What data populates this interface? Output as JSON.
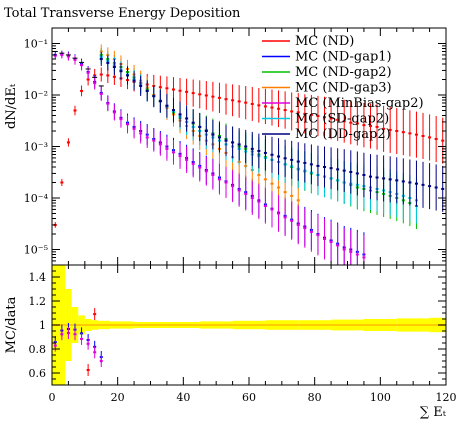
{
  "chart_data": [
    {
      "type": "scatter",
      "title": "Total Transverse Energy Deposition",
      "ylabel": "dN/dE_T",
      "xlabel": "",
      "xlim": [
        0,
        120
      ],
      "ylim": [
        5e-06,
        0.2
      ],
      "yscale": "log",
      "legend_position": "top-right",
      "y_ticks": [
        {
          "v": 0.1,
          "label": "10⁻¹"
        },
        {
          "v": 0.01,
          "label": "10⁻²"
        },
        {
          "v": 0.001,
          "label": "10⁻³"
        },
        {
          "v": 0.0001,
          "label": "10⁻⁴"
        },
        {
          "v": 1e-05,
          "label": "10⁻⁵"
        }
      ],
      "data_points": {
        "x": [
          1,
          3,
          5,
          7,
          9,
          11,
          13,
          15
        ],
        "y": [
          0.07,
          0.065,
          0.06,
          0.052,
          0.043,
          0.032,
          0.022,
          0.015
        ]
      },
      "series": [
        {
          "name": "MC (ND)",
          "color": "#ff0000",
          "x": [
            1,
            3,
            5,
            7,
            9,
            11,
            13,
            15,
            17,
            19,
            21,
            23,
            25,
            27,
            29,
            31,
            33,
            35,
            37,
            39,
            41,
            43,
            45,
            47,
            49,
            51,
            53,
            55,
            57,
            59,
            61,
            63,
            65,
            67,
            69,
            71,
            73,
            75,
            77,
            79,
            81,
            83,
            85,
            87,
            89,
            91,
            93,
            95,
            97,
            99,
            101,
            103,
            105,
            107,
            109,
            111,
            113,
            115,
            117,
            119
          ],
          "y": [
            3e-05,
            0.0002,
            0.0012,
            0.005,
            0.012,
            0.02,
            0.024,
            0.025,
            0.024,
            0.0225,
            0.021,
            0.0195,
            0.018,
            0.017,
            0.016,
            0.015,
            0.0142,
            0.0135,
            0.0128,
            0.0121,
            0.0115,
            0.0109,
            0.0103,
            0.0098,
            0.0093,
            0.0088,
            0.0083,
            0.0079,
            0.0075,
            0.0071,
            0.0067,
            0.0063,
            0.006,
            0.0057,
            0.0054,
            0.0051,
            0.0048,
            0.0046,
            0.0043,
            0.0041,
            0.0039,
            0.0037,
            0.0035,
            0.0033,
            0.0031,
            0.0029,
            0.0028,
            0.0026,
            0.0025,
            0.0024,
            0.0022,
            0.0021,
            0.002,
            0.0019,
            0.0018,
            0.0017,
            0.0016,
            0.0015,
            0.0014,
            0.0013
          ]
        },
        {
          "name": "MC (ND-gap1)",
          "color": "#0000ff",
          "x": [
            1,
            3,
            5,
            7,
            9,
            11,
            13,
            15,
            17,
            19,
            21,
            23,
            25,
            27,
            29,
            31,
            33,
            35,
            37,
            39,
            41,
            43,
            45,
            47,
            49,
            51,
            53,
            55,
            57,
            59,
            61,
            63,
            65,
            67,
            69,
            71,
            73,
            75,
            77,
            79,
            81,
            83,
            85,
            87,
            89,
            91,
            93,
            95
          ],
          "y": [
            0.06,
            0.062,
            0.058,
            0.05,
            0.04,
            0.028,
            0.018,
            0.011,
            0.007,
            0.0048,
            0.0036,
            0.0029,
            0.0024,
            0.002,
            0.0017,
            0.0014,
            0.0012,
            0.001,
            0.00085,
            0.00072,
            0.0006,
            0.0005,
            0.00042,
            0.00035,
            0.0003,
            0.00025,
            0.00021,
            0.00018,
            0.00015,
            0.00013,
            0.00011,
            9e-05,
            7.5e-05,
            6.2e-05,
            5.2e-05,
            4.5e-05,
            3.8e-05,
            3.2e-05,
            2.8e-05,
            2.4e-05,
            2e-05,
            1.7e-05,
            1.5e-05,
            1.3e-05,
            1.1e-05,
            1e-05,
            9e-06,
            8e-06
          ]
        },
        {
          "name": "MC (ND-gap2)",
          "color": "#00c000",
          "x": [
            15,
            17,
            19,
            21,
            23,
            25,
            27,
            29,
            31,
            33,
            35,
            37,
            39,
            41,
            43,
            45,
            47,
            49,
            51,
            53,
            55,
            57,
            59,
            61,
            63,
            65,
            67,
            69,
            71,
            73,
            75,
            77,
            79,
            81,
            83,
            85,
            87,
            89,
            91,
            93,
            95,
            97,
            99,
            101,
            103,
            105,
            107,
            109,
            111
          ],
          "y": [
            0.06,
            0.05,
            0.042,
            0.035,
            0.028,
            0.022,
            0.017,
            0.013,
            0.01,
            0.0078,
            0.006,
            0.0046,
            0.0036,
            0.003,
            0.0028,
            0.0024,
            0.0021,
            0.0018,
            0.0016,
            0.0014,
            0.0012,
            0.001,
            0.0009,
            0.0008,
            0.0007,
            0.00062,
            0.00055,
            0.0005,
            0.00045,
            0.0004,
            0.00036,
            0.00033,
            0.0003,
            0.00028,
            0.00026,
            0.00024,
            0.00022,
            0.0002,
            0.00018,
            0.00016,
            0.00015,
            0.00014,
            0.00013,
            0.00012,
            0.00011,
            0.0001,
            9e-05,
            8e-05,
            7e-05
          ]
        },
        {
          "name": "MC (ND-gap3)",
          "color": "#ff8000",
          "x": [
            15,
            17,
            19,
            21,
            23,
            25,
            27,
            29,
            31,
            33,
            35,
            37,
            39,
            41,
            43,
            45,
            47,
            49,
            51,
            53,
            55,
            57,
            59,
            61,
            63,
            65,
            67,
            69,
            71,
            73,
            75
          ],
          "y": [
            0.07,
            0.06,
            0.05,
            0.04,
            0.032,
            0.025,
            0.019,
            0.014,
            0.01,
            0.0075,
            0.0056,
            0.0042,
            0.0032,
            0.0025,
            0.002,
            0.0016,
            0.0013,
            0.0011,
            0.0009,
            0.00075,
            0.00062,
            0.0005,
            0.00042,
            0.00035,
            0.00028,
            0.00023,
            0.00019,
            0.00016,
            0.00013,
            0.00011,
            9e-05
          ]
        },
        {
          "name": "MC (MinBias-gap2)",
          "color": "#e000e0",
          "x": [
            1,
            3,
            5,
            7,
            9,
            11,
            13,
            15,
            17,
            19,
            21,
            23,
            25,
            27,
            29,
            31,
            33,
            35,
            37,
            39,
            41,
            43,
            45,
            47,
            49,
            51,
            53,
            55,
            57,
            59,
            61,
            63,
            65,
            67,
            69,
            71,
            73,
            75,
            77,
            79,
            81,
            83,
            85,
            87,
            89,
            91,
            93,
            95
          ],
          "y": [
            0.058,
            0.06,
            0.056,
            0.048,
            0.038,
            0.027,
            0.017,
            0.0105,
            0.0068,
            0.0046,
            0.0034,
            0.0027,
            0.0022,
            0.0018,
            0.0015,
            0.0013,
            0.0011,
            0.0009,
            0.00077,
            0.00065,
            0.00055,
            0.00046,
            0.00039,
            0.00033,
            0.00028,
            0.00023,
            0.0002,
            0.00017,
            0.00014,
            0.00012,
            0.0001,
            8.5e-05,
            7e-05,
            6e-05,
            5e-05,
            4.2e-05,
            3.6e-05,
            3e-05,
            2.6e-05,
            2.2e-05,
            1.9e-05,
            1.6e-05,
            1.4e-05,
            1.2e-05,
            1e-05,
            9e-06,
            8e-06,
            7e-06
          ]
        },
        {
          "name": "MC (SD-gap2)",
          "color": "#00c8e0",
          "x": [
            15,
            17,
            19,
            21,
            23,
            25,
            27,
            29,
            31,
            33,
            35,
            37,
            39,
            41,
            43,
            45,
            47,
            49,
            51,
            53,
            55,
            57,
            59,
            61,
            63,
            65,
            67,
            69,
            71,
            73,
            75,
            77,
            79,
            81,
            83,
            85,
            87,
            89,
            91,
            93,
            95,
            97,
            99,
            101,
            103,
            105,
            107,
            109,
            111
          ],
          "y": [
            0.055,
            0.046,
            0.038,
            0.031,
            0.025,
            0.02,
            0.016,
            0.012,
            0.0095,
            0.0075,
            0.006,
            0.0048,
            0.0038,
            0.003,
            0.0024,
            0.002,
            0.0017,
            0.0015,
            0.0013,
            0.0011,
            0.001,
            0.0009,
            0.0008,
            0.0007,
            0.00065,
            0.0006,
            0.00055,
            0.0005,
            0.00045,
            0.00041,
            0.00037,
            0.00034,
            0.00031,
            0.00028,
            0.00026,
            0.00024,
            0.00022,
            0.0002,
            0.00019,
            0.00018,
            0.00017,
            0.00016,
            0.00015,
            0.00014,
            0.00013,
            0.00012,
            0.00011,
            0.0001,
            9e-05
          ]
        },
        {
          "name": "MC (DD-gap2)",
          "color": "#000080",
          "x": [
            15,
            17,
            19,
            21,
            23,
            25,
            27,
            29,
            31,
            33,
            35,
            37,
            39,
            41,
            43,
            45,
            47,
            49,
            51,
            53,
            55,
            57,
            59,
            61,
            63,
            65,
            67,
            69,
            71,
            73,
            75,
            77,
            79,
            81,
            83,
            85,
            87,
            89,
            91,
            93,
            95,
            97,
            99,
            101,
            103,
            105,
            107,
            109,
            111,
            113,
            115,
            117,
            119
          ],
          "y": [
            0.05,
            0.042,
            0.035,
            0.029,
            0.024,
            0.019,
            0.015,
            0.012,
            0.0095,
            0.0076,
            0.0062,
            0.0051,
            0.0042,
            0.0035,
            0.0029,
            0.0024,
            0.002,
            0.0017,
            0.0015,
            0.0013,
            0.0012,
            0.0011,
            0.001,
            0.0009,
            0.00082,
            0.00075,
            0.00069,
            0.00064,
            0.00059,
            0.00055,
            0.00051,
            0.00048,
            0.00045,
            0.00042,
            0.0004,
            0.00038,
            0.00036,
            0.00034,
            0.00032,
            0.0003,
            0.00028,
            0.00026,
            0.00025,
            0.00024,
            0.00023,
            0.00022,
            0.00021,
            0.0002,
            0.00019,
            0.00018,
            0.00017,
            0.00016,
            0.00015
          ]
        }
      ]
    },
    {
      "type": "scatter",
      "title": "",
      "ylabel": "MC/data",
      "xlabel": "∑ E_T",
      "xlim": [
        0,
        120
      ],
      "ylim": [
        0.5,
        1.5
      ],
      "x_ticks": [
        0,
        20,
        40,
        60,
        80,
        100,
        120
      ],
      "y_ticks": [
        0.6,
        0.8,
        1,
        1.2,
        1.4
      ],
      "reference_line": 1,
      "uncertainty_band": {
        "color": "#ffff00",
        "x": [
          1,
          3,
          5,
          7,
          9,
          11,
          13,
          15,
          20,
          30,
          40,
          50,
          60,
          70,
          80,
          90,
          100,
          110,
          120
        ],
        "half_width": [
          1.0,
          0.6,
          0.3,
          0.15,
          0.08,
          0.05,
          0.04,
          0.035,
          0.03,
          0.025,
          0.025,
          0.03,
          0.035,
          0.04,
          0.04,
          0.045,
          0.05,
          0.055,
          0.06
        ]
      }
    }
  ]
}
